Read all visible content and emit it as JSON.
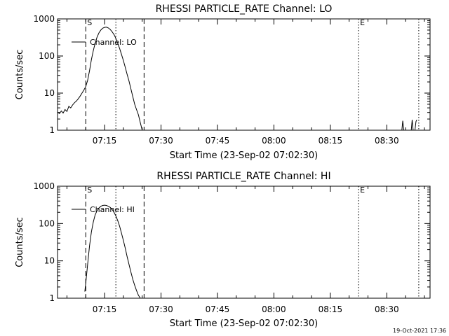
{
  "footer": {
    "timestamp": "19-Oct-2021 17:36"
  },
  "chart_data": [
    {
      "type": "line",
      "title": "RHESSI PARTICLE_RATE Channel: LO",
      "xlabel": "Start Time (23-Sep-02 07:02:30)",
      "ylabel": "Counts/sec",
      "yscale": "log",
      "ylim": [
        1,
        1000
      ],
      "xlim": [
        "07:02:30",
        "08:41:30"
      ],
      "x_ticks": [
        "07:15",
        "07:30",
        "07:45",
        "08:00",
        "08:15",
        "08:30"
      ],
      "y_ticks": [
        "1",
        "10",
        "100",
        "1000"
      ],
      "legend": {
        "placement": "top-left",
        "entries": [
          "Channel: LO"
        ]
      },
      "markers": [
        {
          "label": "S",
          "time": "07:10:00",
          "style": "dashed"
        },
        {
          "label": "",
          "time": "07:18:00",
          "style": "dotted"
        },
        {
          "label": "",
          "time": "07:25:30",
          "style": "dashed"
        },
        {
          "label": "E",
          "time": "08:22:30",
          "style": "dotted"
        },
        {
          "label": "",
          "time": "08:38:30",
          "style": "dotted"
        }
      ],
      "series": [
        {
          "name": "Channel: LO",
          "segments": [
            [
              [
                "07:02:30",
                3.1
              ],
              [
                "07:03:00",
                2.8
              ],
              [
                "07:03:30",
                3.3
              ],
              [
                "07:04:00",
                2.9
              ],
              [
                "07:04:30",
                3.6
              ],
              [
                "07:05:00",
                3.2
              ],
              [
                "07:05:30",
                4.4
              ],
              [
                "07:06:00",
                4.0
              ],
              [
                "07:06:30",
                4.8
              ],
              [
                "07:07:00",
                5.5
              ],
              [
                "07:07:30",
                6.1
              ],
              [
                "07:08:00",
                7.0
              ],
              [
                "07:08:30",
                8.3
              ],
              [
                "07:09:00",
                10
              ],
              [
                "07:09:30",
                12
              ],
              [
                "07:10:00",
                15
              ],
              [
                "07:10:30",
                22
              ],
              [
                "07:11:00",
                40
              ],
              [
                "07:11:30",
                80
              ],
              [
                "07:12:00",
                140
              ],
              [
                "07:12:30",
                220
              ],
              [
                "07:13:00",
                320
              ],
              [
                "07:13:30",
                420
              ],
              [
                "07:14:00",
                500
              ],
              [
                "07:14:30",
                560
              ],
              [
                "07:15:00",
                590
              ],
              [
                "07:15:30",
                600
              ],
              [
                "07:16:00",
                570
              ],
              [
                "07:16:30",
                520
              ],
              [
                "07:17:00",
                450
              ],
              [
                "07:17:30",
                380
              ],
              [
                "07:18:00",
                300
              ],
              [
                "07:18:30",
                220
              ],
              [
                "07:19:00",
                160
              ],
              [
                "07:19:30",
                110
              ],
              [
                "07:20:00",
                75
              ],
              [
                "07:20:30",
                50
              ],
              [
                "07:21:00",
                32
              ],
              [
                "07:21:30",
                21
              ],
              [
                "07:22:00",
                13
              ],
              [
                "07:22:30",
                8
              ],
              [
                "07:23:00",
                5
              ],
              [
                "07:23:30",
                3.6
              ],
              [
                "07:24:00",
                2.6
              ],
              [
                "07:24:30",
                1.6
              ],
              [
                "07:25:00",
                1.0
              ]
            ],
            [
              [
                "08:34:00",
                1.0
              ],
              [
                "08:34:15",
                1.8
              ],
              [
                "08:34:30",
                1.0
              ]
            ],
            [
              [
                "08:36:30",
                1.0
              ],
              [
                "08:36:45",
                1.9
              ],
              [
                "08:37:00",
                1.0
              ]
            ],
            [
              [
                "08:37:30",
                1.0
              ],
              [
                "08:37:45",
                1.7
              ],
              [
                "08:38:00",
                1.9
              ]
            ]
          ]
        }
      ]
    },
    {
      "type": "line",
      "title": "RHESSI PARTICLE_RATE Channel: HI",
      "xlabel": "Start Time (23-Sep-02 07:02:30)",
      "ylabel": "Counts/sec",
      "yscale": "log",
      "ylim": [
        1,
        1000
      ],
      "xlim": [
        "07:02:30",
        "08:41:30"
      ],
      "x_ticks": [
        "07:15",
        "07:30",
        "07:45",
        "08:00",
        "08:15",
        "08:30"
      ],
      "y_ticks": [
        "1",
        "10",
        "100",
        "1000"
      ],
      "legend": {
        "placement": "top-left",
        "entries": [
          "Channel: HI"
        ]
      },
      "markers": [
        {
          "label": "S",
          "time": "07:10:00",
          "style": "dashed"
        },
        {
          "label": "",
          "time": "07:18:00",
          "style": "dotted"
        },
        {
          "label": "",
          "time": "07:25:30",
          "style": "dashed"
        },
        {
          "label": "E",
          "time": "08:22:30",
          "style": "dotted"
        },
        {
          "label": "",
          "time": "08:38:30",
          "style": "dotted"
        }
      ],
      "series": [
        {
          "name": "Channel: HI",
          "segments": [
            [
              [
                "07:09:45",
                1.5
              ],
              [
                "07:10:00",
                2.5
              ],
              [
                "07:10:30",
                8
              ],
              [
                "07:11:00",
                25
              ],
              [
                "07:11:30",
                60
              ],
              [
                "07:12:00",
                110
              ],
              [
                "07:12:30",
                170
              ],
              [
                "07:13:00",
                220
              ],
              [
                "07:13:30",
                260
              ],
              [
                "07:14:00",
                290
              ],
              [
                "07:14:30",
                305
              ],
              [
                "07:15:00",
                310
              ],
              [
                "07:15:30",
                305
              ],
              [
                "07:16:00",
                290
              ],
              [
                "07:16:30",
                270
              ],
              [
                "07:17:00",
                240
              ],
              [
                "07:17:30",
                200
              ],
              [
                "07:18:00",
                160
              ],
              [
                "07:18:30",
                120
              ],
              [
                "07:19:00",
                85
              ],
              [
                "07:19:30",
                55
              ],
              [
                "07:20:00",
                35
              ],
              [
                "07:20:30",
                22
              ],
              [
                "07:21:00",
                13
              ],
              [
                "07:21:30",
                8
              ],
              [
                "07:22:00",
                5
              ],
              [
                "07:22:30",
                3.2
              ],
              [
                "07:23:00",
                2.2
              ],
              [
                "07:23:30",
                1.6
              ],
              [
                "07:24:00",
                1.2
              ],
              [
                "07:24:30",
                1.0
              ]
            ]
          ]
        }
      ]
    }
  ]
}
